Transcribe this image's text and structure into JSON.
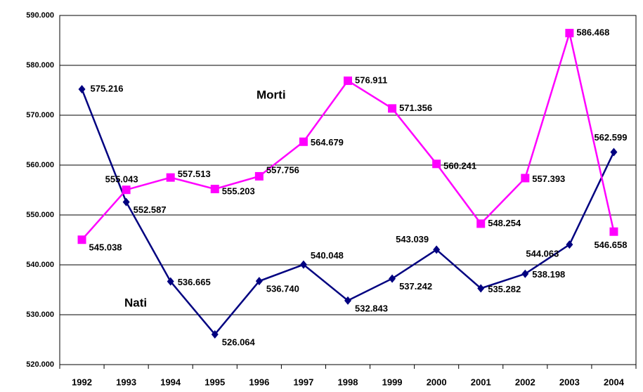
{
  "chart_data": {
    "type": "line",
    "categories": [
      "1992",
      "1993",
      "1994",
      "1995",
      "1996",
      "1997",
      "1998",
      "1999",
      "2000",
      "2001",
      "2002",
      "2003",
      "2004"
    ],
    "series": [
      {
        "name": "Nati",
        "color": "#000080",
        "values": [
          575216,
          552587,
          536665,
          526064,
          536740,
          540048,
          532843,
          537242,
          543039,
          535282,
          538198,
          544063,
          562599
        ],
        "value_labels": [
          "575.216",
          "552.587",
          "536.665",
          "526.064",
          "536.740",
          "540.048",
          "532.843",
          "537.242",
          "543.039",
          "535.282",
          "538.198",
          "544.063",
          "562.599"
        ]
      },
      {
        "name": "Morti",
        "color": "#ff00ff",
        "values": [
          545038,
          555043,
          557513,
          555203,
          557756,
          564679,
          576911,
          571356,
          560241,
          548254,
          557393,
          586468,
          546658
        ],
        "value_labels": [
          "545.038",
          "555.043",
          "557.513",
          "555.203",
          "557.756",
          "564.679",
          "576.911",
          "571.356",
          "560.241",
          "548.254",
          "557.393",
          "586.468",
          "546.658"
        ]
      }
    ],
    "ylim": [
      520000,
      590000
    ],
    "yticks": [
      {
        "value": 520000,
        "label": "520.000"
      },
      {
        "value": 530000,
        "label": "530.000"
      },
      {
        "value": 540000,
        "label": "540.000"
      },
      {
        "value": 550000,
        "label": "550.000"
      },
      {
        "value": 560000,
        "label": "560.000"
      },
      {
        "value": 570000,
        "label": "570.000"
      },
      {
        "value": 580000,
        "label": "580.000"
      },
      {
        "value": 590000,
        "label": "590.000"
      }
    ],
    "grid": true
  }
}
